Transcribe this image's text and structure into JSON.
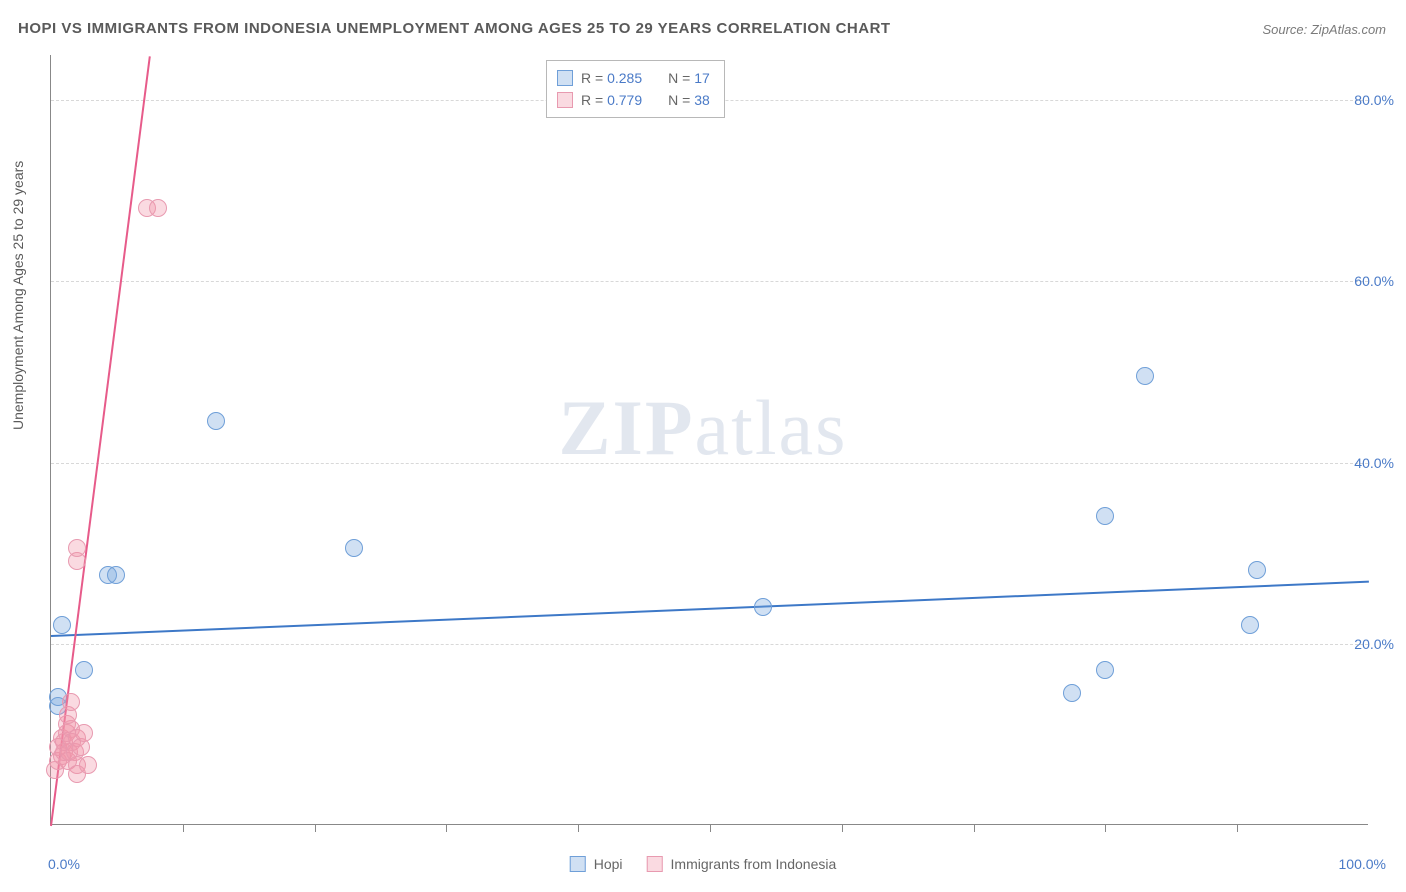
{
  "title": "HOPI VS IMMIGRANTS FROM INDONESIA UNEMPLOYMENT AMONG AGES 25 TO 29 YEARS CORRELATION CHART",
  "source": "Source: ZipAtlas.com",
  "watermark_zip": "ZIP",
  "watermark_atlas": "atlas",
  "y_axis_label": "Unemployment Among Ages 25 to 29 years",
  "x_min_label": "0.0%",
  "x_max_label": "100.0%",
  "chart": {
    "type": "scatter",
    "xlim": [
      0,
      100
    ],
    "ylim": [
      0,
      85
    ],
    "y_ticks": [
      20,
      40,
      60,
      80
    ],
    "y_tick_labels": [
      "20.0%",
      "40.0%",
      "60.0%",
      "80.0%"
    ],
    "x_ticks": [
      10,
      20,
      30,
      40,
      50,
      60,
      70,
      80,
      90
    ],
    "background_color": "#ffffff",
    "grid_color": "#d8d8d8",
    "point_radius": 9,
    "series": [
      {
        "name": "Hopi",
        "fill": "rgba(120,165,220,0.35)",
        "stroke": "#6f9fd8",
        "trend_color": "#3d78c7",
        "trend_width": 2,
        "trend": {
          "x1": 0,
          "y1": 21,
          "x2": 100,
          "y2": 27
        },
        "r_label": "R = ",
        "r_value": "0.285",
        "n_label": "N = ",
        "n_value": "17",
        "points": [
          {
            "x": 0.5,
            "y": 13
          },
          {
            "x": 0.5,
            "y": 14
          },
          {
            "x": 0.8,
            "y": 22
          },
          {
            "x": 2.5,
            "y": 17
          },
          {
            "x": 4.3,
            "y": 27.5
          },
          {
            "x": 4.9,
            "y": 27.5
          },
          {
            "x": 12.5,
            "y": 44.5
          },
          {
            "x": 23,
            "y": 30.5
          },
          {
            "x": 54,
            "y": 24
          },
          {
            "x": 77.5,
            "y": 14.5
          },
          {
            "x": 80,
            "y": 17
          },
          {
            "x": 80,
            "y": 34
          },
          {
            "x": 83,
            "y": 49.5
          },
          {
            "x": 91,
            "y": 22
          },
          {
            "x": 91.5,
            "y": 28
          }
        ]
      },
      {
        "name": "Immigrants from Indonesia",
        "fill": "rgba(240,150,170,0.35)",
        "stroke": "#e89ab0",
        "trend_color": "#e75b8a",
        "trend_width": 2,
        "trend": {
          "x1": 0,
          "y1": 0,
          "x2": 7.5,
          "y2": 85
        },
        "r_label": "R = ",
        "r_value": "0.779",
        "n_label": "N = ",
        "n_value": "38",
        "points": [
          {
            "x": 0.3,
            "y": 6
          },
          {
            "x": 0.5,
            "y": 7
          },
          {
            "x": 0.5,
            "y": 8.5
          },
          {
            "x": 0.8,
            "y": 9.5
          },
          {
            "x": 0.8,
            "y": 7.5
          },
          {
            "x": 1.0,
            "y": 8
          },
          {
            "x": 1.0,
            "y": 9
          },
          {
            "x": 1.2,
            "y": 10
          },
          {
            "x": 1.2,
            "y": 11
          },
          {
            "x": 1.3,
            "y": 7
          },
          {
            "x": 1.4,
            "y": 8
          },
          {
            "x": 1.5,
            "y": 10.5
          },
          {
            "x": 1.6,
            "y": 9
          },
          {
            "x": 1.3,
            "y": 12
          },
          {
            "x": 1.8,
            "y": 8
          },
          {
            "x": 2.0,
            "y": 9.5
          },
          {
            "x": 2.0,
            "y": 6.5
          },
          {
            "x": 2.3,
            "y": 8.5
          },
          {
            "x": 2.5,
            "y": 10
          },
          {
            "x": 2.0,
            "y": 5.5
          },
          {
            "x": 2.8,
            "y": 6.5
          },
          {
            "x": 1.5,
            "y": 13.5
          },
          {
            "x": 2.0,
            "y": 29
          },
          {
            "x": 2.0,
            "y": 30.5
          },
          {
            "x": 7.3,
            "y": 68
          },
          {
            "x": 8.1,
            "y": 68
          }
        ]
      }
    ]
  }
}
